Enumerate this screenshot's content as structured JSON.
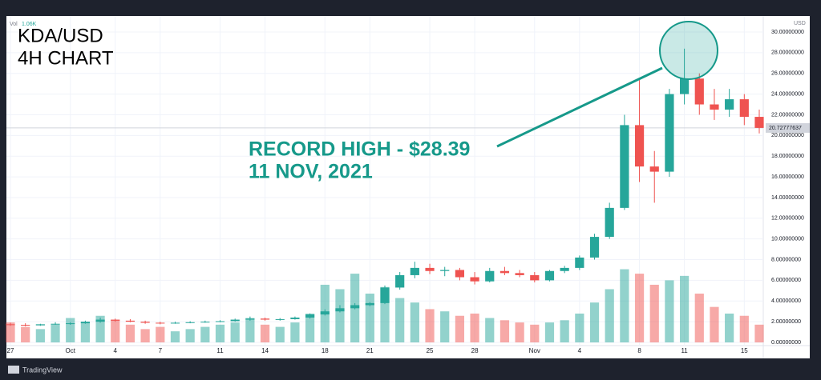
{
  "chart_data": {
    "type": "candlestick",
    "title": "KDA/USD",
    "subtitle": "4H CHART",
    "annotations": [
      {
        "text": "RECORD HIGH - $28.39"
      },
      {
        "text": "11 NOV, 2021"
      }
    ],
    "volume_legend": {
      "name": "Vol",
      "value": "1.06K"
    },
    "y_axis_label": "USD",
    "categories": [
      "27",
      null,
      null,
      null,
      "Oct",
      null,
      null,
      "4",
      null,
      null,
      "7",
      null,
      null,
      null,
      "11",
      null,
      null,
      "14",
      null,
      null,
      null,
      "18",
      null,
      null,
      "21",
      null,
      null,
      null,
      "25",
      null,
      null,
      "28",
      null,
      null,
      null,
      "Nov",
      null,
      null,
      "4",
      null,
      null,
      null,
      "8",
      null,
      null,
      "11",
      null,
      null,
      null,
      "15",
      null
    ],
    "open": [
      1.75,
      1.7,
      1.65,
      1.75,
      1.8,
      1.85,
      2.0,
      2.2,
      2.1,
      2.0,
      1.9,
      1.85,
      1.9,
      1.95,
      2.0,
      2.05,
      2.2,
      2.3,
      2.2,
      2.25,
      2.4,
      2.7,
      3.0,
      3.3,
      3.6,
      3.8,
      5.3,
      6.5,
      7.2,
      6.9,
      7.0,
      6.3,
      5.9,
      6.9,
      6.7,
      6.5,
      6.0,
      6.9,
      7.2,
      8.2,
      10.2,
      13.0,
      21.0,
      17.0,
      16.5,
      24.0,
      25.5,
      23.0,
      22.5,
      23.5,
      21.8
    ],
    "high": [
      1.9,
      1.85,
      1.8,
      1.95,
      1.95,
      2.1,
      2.4,
      2.3,
      2.25,
      2.1,
      2.0,
      2.0,
      2.05,
      2.1,
      2.15,
      2.3,
      2.5,
      2.4,
      2.35,
      2.5,
      2.8,
      3.2,
      3.6,
      3.8,
      3.9,
      5.5,
      6.8,
      7.8,
      7.6,
      7.3,
      7.2,
      6.8,
      7.2,
      7.3,
      7.0,
      6.8,
      7.0,
      7.4,
      8.4,
      10.5,
      13.5,
      22.0,
      25.5,
      18.5,
      24.5,
      28.39,
      26.0,
      24.5,
      24.5,
      24.0,
      22.5
    ],
    "low": [
      1.6,
      1.55,
      1.6,
      1.7,
      1.7,
      1.8,
      1.9,
      2.0,
      1.95,
      1.8,
      1.75,
      1.8,
      1.85,
      1.9,
      1.95,
      2.0,
      2.1,
      2.1,
      2.1,
      2.2,
      2.3,
      2.6,
      2.9,
      3.2,
      3.5,
      3.7,
      5.1,
      6.2,
      6.6,
      6.4,
      6.0,
      5.6,
      5.8,
      6.5,
      6.3,
      5.8,
      5.9,
      6.7,
      7.0,
      8.0,
      10.0,
      12.8,
      15.5,
      13.5,
      16.0,
      23.0,
      22.0,
      21.5,
      21.8,
      21.0,
      20.2
    ],
    "close": [
      1.7,
      1.65,
      1.75,
      1.8,
      1.85,
      2.0,
      2.2,
      2.1,
      2.0,
      1.9,
      1.85,
      1.9,
      1.95,
      2.0,
      2.05,
      2.2,
      2.3,
      2.2,
      2.25,
      2.4,
      2.7,
      3.0,
      3.3,
      3.6,
      3.8,
      5.3,
      6.5,
      7.2,
      6.9,
      7.0,
      6.3,
      5.9,
      6.9,
      6.7,
      6.5,
      6.0,
      6.9,
      7.2,
      8.2,
      10.2,
      13.0,
      21.0,
      17.0,
      16.5,
      24.0,
      25.5,
      23.0,
      22.5,
      23.5,
      21.8,
      20.73
    ],
    "volume": [
      0.9,
      0.7,
      0.6,
      0.8,
      1.1,
      0.9,
      1.2,
      1.0,
      0.8,
      0.6,
      0.7,
      0.5,
      0.6,
      0.7,
      0.8,
      0.9,
      1.1,
      0.8,
      0.7,
      0.9,
      1.3,
      2.6,
      2.4,
      3.1,
      2.2,
      2.5,
      2.0,
      1.8,
      1.5,
      1.4,
      1.2,
      1.3,
      1.1,
      1.0,
      0.9,
      0.8,
      0.9,
      1.0,
      1.3,
      1.8,
      2.4,
      3.3,
      3.1,
      2.6,
      2.8,
      3.0,
      2.2,
      1.6,
      1.3,
      1.2,
      0.8
    ],
    "up_color": "#26a69a",
    "down_color": "#ef5350",
    "ylim": [
      0,
      30
    ],
    "yticks": [
      {
        "value": 0,
        "label": "0.00000000"
      },
      {
        "value": 2,
        "label": "2.00000000"
      },
      {
        "value": 4,
        "label": "4.00000000"
      },
      {
        "value": 6,
        "label": "6.00000000"
      },
      {
        "value": 8,
        "label": "8.00000000"
      },
      {
        "value": 10,
        "label": "10.00000000"
      },
      {
        "value": 12,
        "label": "12.00000000"
      },
      {
        "value": 14,
        "label": "14.00000000"
      },
      {
        "value": 16,
        "label": "16.00000000"
      },
      {
        "value": 18,
        "label": "18.00000000"
      },
      {
        "value": 20,
        "label": "20.00000000"
      },
      {
        "value": 22,
        "label": "22.00000000"
      },
      {
        "value": 24,
        "label": "24.00000000"
      },
      {
        "value": 26,
        "label": "26.00000000"
      },
      {
        "value": 28,
        "label": "28.00000000"
      },
      {
        "value": 30,
        "label": "30.00000000"
      }
    ],
    "y2lim": [
      0,
      14
    ],
    "last_price": 20.72777637
  },
  "brand": "TradingView"
}
